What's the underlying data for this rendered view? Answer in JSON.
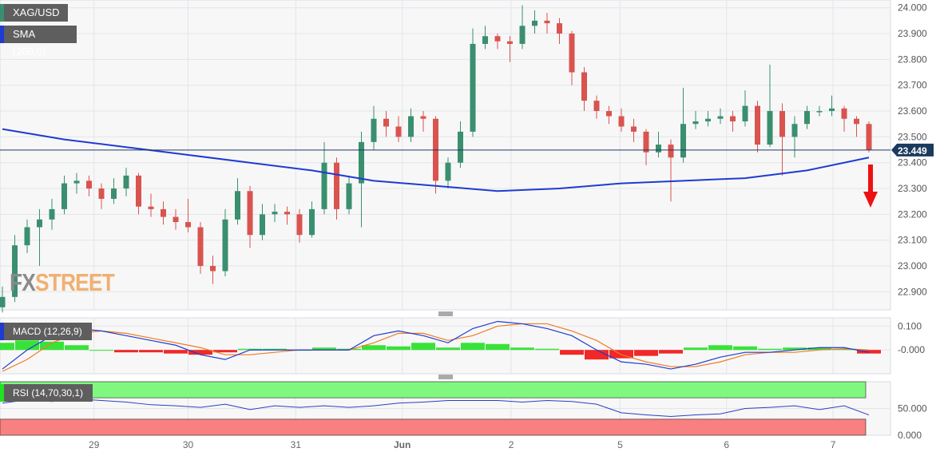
{
  "legend": {
    "symbol": "XAG/USD",
    "sma": "SMA (200,0)",
    "macd": "MACD (12,26,9)",
    "rsi": "RSI (14,70,30,1)"
  },
  "colors": {
    "up": "#3a8f6f",
    "down": "#d9534f",
    "sma": "#1f3bd1",
    "macd": "#1f3bd1",
    "signal": "#f07c22",
    "hist_pos": "#22e022",
    "hist_neg": "#ee1111",
    "rsi_line": "#2840c0",
    "overbought": "#80f880",
    "oversold": "#f88080",
    "price_tag": "#1c3a5e",
    "arrow": "#ee1111"
  },
  "watermark": {
    "part1": "FX",
    "part2": "STREET"
  },
  "chart_data": {
    "type": "candlestick",
    "main": {
      "ylim": [
        22.83,
        24.03
      ],
      "yticks": [
        "24.000",
        "23.900",
        "23.800",
        "23.700",
        "23.600",
        "23.500",
        "23.400",
        "23.300",
        "23.200",
        "23.100",
        "23.000",
        "22.900"
      ],
      "ytick_values": [
        24.0,
        23.9,
        23.8,
        23.7,
        23.6,
        23.5,
        23.4,
        23.3,
        23.2,
        23.1,
        23.0,
        22.9
      ],
      "last_price": 23.449,
      "last_price_label": "23.449",
      "ohlc": [
        [
          22.84,
          22.92,
          22.82,
          22.88
        ],
        [
          22.88,
          23.12,
          22.86,
          23.08
        ],
        [
          23.08,
          23.18,
          23.05,
          23.15
        ],
        [
          23.15,
          23.22,
          23.0,
          23.18
        ],
        [
          23.18,
          23.26,
          23.14,
          23.22
        ],
        [
          23.22,
          23.35,
          23.2,
          23.32
        ],
        [
          23.32,
          23.36,
          23.28,
          23.33
        ],
        [
          23.33,
          23.35,
          23.27,
          23.3
        ],
        [
          23.3,
          23.32,
          23.22,
          23.26
        ],
        [
          23.26,
          23.34,
          23.24,
          23.3
        ],
        [
          23.3,
          23.38,
          23.27,
          23.35
        ],
        [
          23.35,
          23.36,
          23.2,
          23.23
        ],
        [
          23.23,
          23.28,
          23.19,
          23.22
        ],
        [
          23.22,
          23.25,
          23.16,
          23.19
        ],
        [
          23.19,
          23.22,
          23.14,
          23.17
        ],
        [
          23.17,
          23.26,
          23.13,
          23.15
        ],
        [
          23.15,
          23.17,
          22.97,
          23.0
        ],
        [
          23.0,
          23.04,
          22.93,
          22.98
        ],
        [
          22.98,
          23.22,
          22.96,
          23.18
        ],
        [
          23.18,
          23.34,
          23.16,
          23.29
        ],
        [
          23.29,
          23.31,
          23.07,
          23.12
        ],
        [
          23.12,
          23.24,
          23.1,
          23.2
        ],
        [
          23.2,
          23.24,
          23.17,
          23.21
        ],
        [
          23.21,
          23.23,
          23.16,
          23.2
        ],
        [
          23.2,
          23.22,
          23.09,
          23.12
        ],
        [
          23.12,
          23.25,
          23.11,
          23.22
        ],
        [
          23.22,
          23.48,
          23.2,
          23.4
        ],
        [
          23.4,
          23.42,
          23.18,
          23.22
        ],
        [
          23.22,
          23.35,
          23.2,
          23.32
        ],
        [
          23.32,
          23.52,
          23.15,
          23.48
        ],
        [
          23.48,
          23.62,
          23.45,
          23.57
        ],
        [
          23.57,
          23.6,
          23.5,
          23.54
        ],
        [
          23.54,
          23.58,
          23.48,
          23.5
        ],
        [
          23.5,
          23.61,
          23.48,
          23.58
        ],
        [
          23.58,
          23.6,
          23.52,
          23.57
        ],
        [
          23.57,
          23.58,
          23.28,
          23.33
        ],
        [
          23.33,
          23.42,
          23.3,
          23.4
        ],
        [
          23.4,
          23.56,
          23.38,
          23.52
        ],
        [
          23.52,
          23.92,
          23.5,
          23.86
        ],
        [
          23.86,
          23.93,
          23.84,
          23.89
        ],
        [
          23.89,
          23.9,
          23.84,
          23.87
        ],
        [
          23.87,
          23.89,
          23.79,
          23.86
        ],
        [
          23.86,
          24.01,
          23.84,
          23.93
        ],
        [
          23.93,
          23.99,
          23.9,
          23.95
        ],
        [
          23.95,
          23.98,
          23.9,
          23.94
        ],
        [
          23.94,
          23.96,
          23.86,
          23.9
        ],
        [
          23.9,
          23.91,
          23.7,
          23.75
        ],
        [
          23.75,
          23.77,
          23.6,
          23.64
        ],
        [
          23.64,
          23.66,
          23.57,
          23.6
        ],
        [
          23.6,
          23.62,
          23.55,
          23.58
        ],
        [
          23.58,
          23.61,
          23.52,
          23.54
        ],
        [
          23.54,
          23.57,
          23.48,
          23.52
        ],
        [
          23.52,
          23.53,
          23.39,
          23.44
        ],
        [
          23.44,
          23.52,
          23.42,
          23.47
        ],
        [
          23.47,
          23.49,
          23.25,
          23.42
        ],
        [
          23.42,
          23.69,
          23.4,
          23.55
        ],
        [
          23.55,
          23.6,
          23.53,
          23.56
        ],
        [
          23.56,
          23.6,
          23.54,
          23.57
        ],
        [
          23.57,
          23.61,
          23.55,
          23.58
        ],
        [
          23.58,
          23.6,
          23.52,
          23.56
        ],
        [
          23.56,
          23.68,
          23.54,
          23.62
        ],
        [
          23.62,
          23.64,
          23.44,
          23.47
        ],
        [
          23.47,
          23.78,
          23.46,
          23.6
        ],
        [
          23.6,
          23.63,
          23.35,
          23.5
        ],
        [
          23.5,
          23.58,
          23.42,
          23.55
        ],
        [
          23.55,
          23.62,
          23.53,
          23.6
        ],
        [
          23.6,
          23.62,
          23.58,
          23.6
        ],
        [
          23.6,
          23.66,
          23.58,
          23.61
        ],
        [
          23.61,
          23.62,
          23.52,
          23.57
        ],
        [
          23.57,
          23.58,
          23.5,
          23.55
        ],
        [
          23.55,
          23.56,
          23.44,
          23.449
        ]
      ],
      "sma_200": [
        [
          0,
          23.53
        ],
        [
          5,
          23.49
        ],
        [
          10,
          23.46
        ],
        [
          15,
          23.43
        ],
        [
          20,
          23.4
        ],
        [
          25,
          23.37
        ],
        [
          30,
          23.33
        ],
        [
          35,
          23.31
        ],
        [
          40,
          23.29
        ],
        [
          45,
          23.3
        ],
        [
          50,
          23.32
        ],
        [
          55,
          23.33
        ],
        [
          60,
          23.34
        ],
        [
          65,
          23.37
        ],
        [
          70,
          23.42
        ]
      ]
    },
    "macd": {
      "ylim": [
        -0.1,
        0.135
      ],
      "yticks": [
        "0.100",
        "-0.000"
      ],
      "ytick_values": [
        0.1,
        0.0
      ],
      "index": [
        0,
        2,
        4,
        6,
        8,
        10,
        12,
        14,
        16,
        18,
        20,
        22,
        24,
        26,
        28,
        30,
        32,
        34,
        36,
        38,
        40,
        42,
        44,
        46,
        48,
        50,
        52,
        54,
        56,
        58,
        60,
        62,
        64,
        66,
        68,
        70
      ],
      "macd": [
        -0.08,
        0.0,
        0.06,
        0.09,
        0.08,
        0.06,
        0.04,
        0.02,
        -0.02,
        -0.04,
        0.0,
        0.0,
        0.0,
        0.0,
        0.0,
        0.06,
        0.08,
        0.06,
        0.03,
        0.09,
        0.12,
        0.11,
        0.09,
        0.06,
        0.0,
        -0.05,
        -0.06,
        -0.08,
        -0.06,
        -0.03,
        -0.01,
        -0.01,
        0.0,
        0.01,
        0.01,
        -0.01
      ],
      "signal": [
        -0.09,
        -0.04,
        0.03,
        0.07,
        0.08,
        0.07,
        0.05,
        0.03,
        0.01,
        -0.02,
        -0.02,
        -0.01,
        0.0,
        0.0,
        0.0,
        0.03,
        0.07,
        0.07,
        0.04,
        0.06,
        0.1,
        0.11,
        0.11,
        0.08,
        0.04,
        -0.02,
        -0.05,
        -0.07,
        -0.07,
        -0.05,
        -0.02,
        -0.01,
        -0.01,
        0.0,
        0.005,
        0.0
      ],
      "histogram": [
        0.03,
        0.04,
        0.035,
        0.02,
        0.0,
        -0.01,
        -0.01,
        -0.015,
        -0.02,
        -0.01,
        0.005,
        0.005,
        0.0,
        0.01,
        0.005,
        0.02,
        0.015,
        0.03,
        0.01,
        0.03,
        0.025,
        0.01,
        0.005,
        -0.02,
        -0.04,
        -0.035,
        -0.025,
        -0.015,
        0.01,
        0.02,
        0.015,
        0.005,
        0.01,
        0.01,
        0.005,
        -0.015
      ]
    },
    "rsi": {
      "ylim": [
        0,
        100
      ],
      "yticks": [
        "50.000",
        "0.000"
      ],
      "ytick_values": [
        50,
        0
      ],
      "overbought": 70,
      "oversold": 30,
      "index": [
        0,
        2,
        4,
        6,
        8,
        10,
        12,
        14,
        16,
        18,
        20,
        22,
        24,
        26,
        28,
        30,
        32,
        34,
        36,
        38,
        40,
        42,
        44,
        46,
        48,
        50,
        52,
        54,
        56,
        58,
        60,
        62,
        64,
        66,
        68,
        70
      ],
      "values": [
        60,
        66,
        63,
        68,
        65,
        62,
        57,
        55,
        52,
        58,
        48,
        55,
        52,
        55,
        52,
        55,
        60,
        62,
        65,
        65,
        65,
        62,
        65,
        63,
        58,
        42,
        38,
        35,
        38,
        40,
        50,
        52,
        55,
        48,
        55,
        38
      ]
    },
    "x_ticks": [
      {
        "label": "29",
        "index": 7.4
      },
      {
        "label": "30",
        "index": 15
      },
      {
        "label": "31",
        "index": 23.7
      },
      {
        "label": "Jun",
        "index": 32.3
      },
      {
        "label": "2",
        "index": 41.1
      },
      {
        "label": "5",
        "index": 49.9
      },
      {
        "label": "6",
        "index": 58.5
      },
      {
        "label": "7",
        "index": 67.1
      }
    ],
    "grid": true,
    "annotation": "red-down-arrow"
  }
}
